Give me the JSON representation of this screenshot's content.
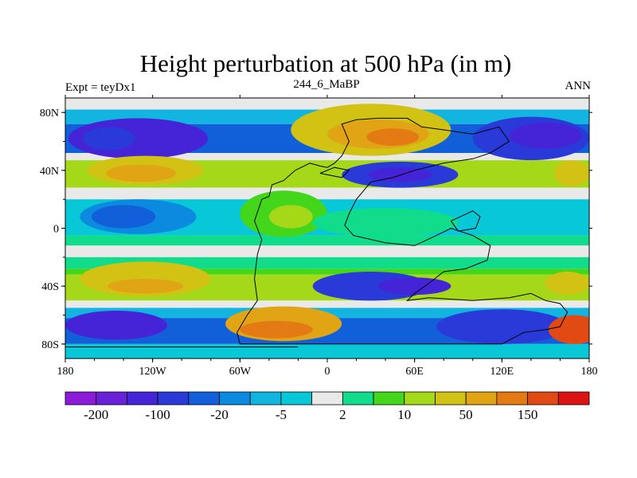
{
  "title": "Height perturbation at 500 hPa (in m)",
  "left_label": "Expt = teyDx1",
  "center_label": "244_6_MaBP",
  "right_label": "ANN",
  "map": {
    "projection": "cylindrical-equidistant",
    "lon_range": [
      -180,
      180
    ],
    "lat_range": [
      -90,
      90
    ],
    "x_tick_labels": [
      {
        "lon": -180,
        "label": "180"
      },
      {
        "lon": -120,
        "label": "120W"
      },
      {
        "lon": -60,
        "label": "60W"
      },
      {
        "lon": 0,
        "label": "0"
      },
      {
        "lon": 60,
        "label": "60E"
      },
      {
        "lon": 120,
        "label": "120E"
      },
      {
        "lon": 180,
        "label": "180"
      }
    ],
    "y_tick_labels": [
      {
        "lat": 80,
        "label": "80N"
      },
      {
        "lat": 40,
        "label": "40N"
      },
      {
        "lat": 0,
        "label": "0"
      },
      {
        "lat": -40,
        "label": "40S"
      },
      {
        "lat": -80,
        "label": "80S"
      }
    ],
    "color_levels": [
      {
        "level": 1,
        "color": "#8c1ad9"
      },
      {
        "level": 2,
        "color": "#6a1fd9"
      },
      {
        "level": 3,
        "color": "#4424d6"
      },
      {
        "level": 4,
        "color": "#2a3ad9"
      },
      {
        "level": 5,
        "color": "#1160d9"
      },
      {
        "level": 6,
        "color": "#0c8ae0"
      },
      {
        "level": 7,
        "color": "#12b4e0"
      },
      {
        "level": 8,
        "color": "#08c8d8"
      },
      {
        "level": 9,
        "color": "#e9e9e9"
      },
      {
        "level": 10,
        "color": "#10dc8c"
      },
      {
        "level": 11,
        "color": "#44d61a"
      },
      {
        "level": 12,
        "color": "#a6d81a"
      },
      {
        "level": 13,
        "color": "#d2c214"
      },
      {
        "level": 14,
        "color": "#e0a414"
      },
      {
        "level": 15,
        "color": "#e37a14"
      },
      {
        "level": 16,
        "color": "#e24a14"
      },
      {
        "level": 17,
        "color": "#dd1414"
      }
    ],
    "field_note": "approximate contour field",
    "blobs": [
      {
        "lon": -130,
        "lat": 62,
        "rx": 48,
        "ry": 14,
        "level": 3
      },
      {
        "lon": -150,
        "lat": 62,
        "rx": 18,
        "ry": 8,
        "level": 4
      },
      {
        "lon": -125,
        "lat": 40,
        "rx": 40,
        "ry": 10,
        "level": 13
      },
      {
        "lon": -128,
        "lat": 38,
        "rx": 24,
        "ry": 6,
        "level": 14
      },
      {
        "lon": 30,
        "lat": 68,
        "rx": 55,
        "ry": 18,
        "level": 13
      },
      {
        "lon": 35,
        "lat": 65,
        "rx": 35,
        "ry": 10,
        "level": 14
      },
      {
        "lon": 45,
        "lat": 63,
        "rx": 18,
        "ry": 6,
        "level": 15
      },
      {
        "lon": 50,
        "lat": 37,
        "rx": 40,
        "ry": 9,
        "level": 4
      },
      {
        "lon": 50,
        "lat": 37,
        "rx": 22,
        "ry": 5,
        "level": 3
      },
      {
        "lon": 140,
        "lat": 62,
        "rx": 40,
        "ry": 15,
        "level": 4
      },
      {
        "lon": 150,
        "lat": 64,
        "rx": 25,
        "ry": 9,
        "level": 3
      },
      {
        "lon": 168,
        "lat": 38,
        "rx": 12,
        "ry": 9,
        "level": 13
      },
      {
        "lon": -130,
        "lat": 8,
        "rx": 40,
        "ry": 12,
        "level": 6
      },
      {
        "lon": -140,
        "lat": 8,
        "rx": 22,
        "ry": 8,
        "level": 5
      },
      {
        "lon": -30,
        "lat": 10,
        "rx": 30,
        "ry": 16,
        "level": 11
      },
      {
        "lon": -25,
        "lat": 8,
        "rx": 15,
        "ry": 8,
        "level": 12
      },
      {
        "lon": 40,
        "lat": 4,
        "rx": 50,
        "ry": 10,
        "level": 10
      },
      {
        "lon": -125,
        "lat": -35,
        "rx": 45,
        "ry": 12,
        "level": 13
      },
      {
        "lon": -125,
        "lat": -40,
        "rx": 26,
        "ry": 5,
        "level": 14
      },
      {
        "lon": 30,
        "lat": -40,
        "rx": 40,
        "ry": 10,
        "level": 4
      },
      {
        "lon": 60,
        "lat": -40,
        "rx": 25,
        "ry": 6,
        "level": 3
      },
      {
        "lon": 165,
        "lat": -38,
        "rx": 15,
        "ry": 8,
        "level": 13
      },
      {
        "lon": -145,
        "lat": -67,
        "rx": 35,
        "ry": 10,
        "level": 3
      },
      {
        "lon": -30,
        "lat": -66,
        "rx": 40,
        "ry": 12,
        "level": 14
      },
      {
        "lon": -35,
        "lat": -70,
        "rx": 25,
        "ry": 6,
        "level": 15
      },
      {
        "lon": 120,
        "lat": -68,
        "rx": 45,
        "ry": 12,
        "level": 4
      },
      {
        "lon": 170,
        "lat": -70,
        "rx": 18,
        "ry": 10,
        "level": 16
      }
    ]
  },
  "colorbar": {
    "colors": [
      "#8c1ad9",
      "#6a1fd9",
      "#4424d6",
      "#2a3ad9",
      "#1160d9",
      "#0c8ae0",
      "#12b4e0",
      "#08c8d8",
      "#e9e9e9",
      "#10dc8c",
      "#44d61a",
      "#a6d81a",
      "#d2c214",
      "#e0a414",
      "#e37a14",
      "#e24a14",
      "#dd1414"
    ],
    "labels": [
      {
        "boundary": 1,
        "text": "-200"
      },
      {
        "boundary": 3,
        "text": "-100"
      },
      {
        "boundary": 5,
        "text": "-20"
      },
      {
        "boundary": 7,
        "text": "-5"
      },
      {
        "boundary": 9,
        "text": "2"
      },
      {
        "boundary": 11,
        "text": "10"
      },
      {
        "boundary": 13,
        "text": "50"
      },
      {
        "boundary": 15,
        "text": "150"
      }
    ]
  }
}
